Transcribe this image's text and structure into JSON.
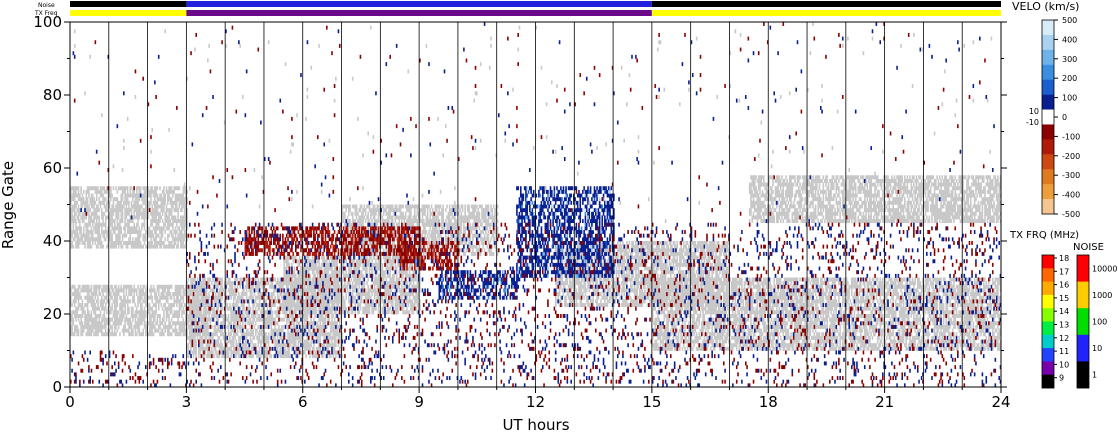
{
  "header": {
    "noise_label": "Noise",
    "txfreq_label": "TX Freq"
  },
  "status_bars": {
    "noise_segments": [
      {
        "from": 0,
        "to": 3,
        "color": "#000000"
      },
      {
        "from": 3,
        "to": 15,
        "color": "#2222dd"
      },
      {
        "from": 15,
        "to": 24,
        "color": "#000000"
      }
    ],
    "freq_segments": [
      {
        "from": 0,
        "to": 3,
        "color": "#ffff00"
      },
      {
        "from": 3,
        "to": 15,
        "color": "#6a0a8a"
      },
      {
        "from": 15,
        "to": 24,
        "color": "#ffff00"
      }
    ]
  },
  "chart_data": {
    "type": "heatmap",
    "title": "",
    "xlabel": "UT hours",
    "ylabel": "Range Gate",
    "xlim": [
      0,
      24
    ],
    "ylim": [
      0,
      100
    ],
    "x_ticks": [
      0,
      3,
      6,
      9,
      12,
      15,
      18,
      21,
      24
    ],
    "y_ticks": [
      0,
      20,
      40,
      60,
      80,
      100
    ],
    "vertical_gridlines_every_hours": 1,
    "ground_scatter_color": "#c8c8c8",
    "scatter_regions": [
      {
        "kind": "ground",
        "x": [
          0,
          3
        ],
        "y": [
          38,
          55
        ]
      },
      {
        "kind": "ground",
        "x": [
          0,
          3.5
        ],
        "y": [
          14,
          28
        ]
      },
      {
        "kind": "ground",
        "x": [
          3,
          7
        ],
        "y": [
          8,
          30
        ]
      },
      {
        "kind": "ground",
        "x": [
          5.5,
          9
        ],
        "y": [
          20,
          36
        ]
      },
      {
        "kind": "ground",
        "x": [
          7,
          11
        ],
        "y": [
          36,
          50
        ]
      },
      {
        "kind": "ground",
        "x": [
          12.5,
          17
        ],
        "y": [
          22,
          40
        ]
      },
      {
        "kind": "ground",
        "x": [
          15,
          24
        ],
        "y": [
          10,
          30
        ]
      },
      {
        "kind": "ground",
        "x": [
          17.5,
          24
        ],
        "y": [
          45,
          58
        ]
      },
      {
        "kind": "positive",
        "x": [
          9.5,
          11.5
        ],
        "y": [
          24,
          32
        ]
      },
      {
        "kind": "positive",
        "x": [
          11.5,
          14
        ],
        "y": [
          30,
          55
        ]
      },
      {
        "kind": "negative",
        "x": [
          8.5,
          10
        ],
        "y": [
          32,
          40
        ]
      },
      {
        "kind": "negative",
        "x": [
          4.5,
          9
        ],
        "y": [
          36,
          44
        ]
      },
      {
        "kind": "mixed",
        "x": [
          0,
          24
        ],
        "y": [
          0,
          10
        ]
      },
      {
        "kind": "mixed",
        "x": [
          3,
          24
        ],
        "y": [
          10,
          45
        ]
      },
      {
        "kind": "sparse",
        "x": [
          0,
          24
        ],
        "y": [
          45,
          100
        ]
      }
    ],
    "velocity_scale": {
      "label": "VELO (km/s)",
      "ticks": [
        500,
        400,
        300,
        200,
        100,
        0,
        -100,
        -200,
        -300,
        -400,
        -500
      ],
      "side_labels": [
        "10",
        "-10"
      ],
      "colors": [
        "#d8ecf8",
        "#a8d2f0",
        "#6eb2ea",
        "#3a8ee0",
        "#1a5ed0",
        "#0a1f8f",
        "#ffffff",
        "#8a0000",
        "#b01a0a",
        "#cc4a12",
        "#e07a1e",
        "#ee9e3a",
        "#f6c690"
      ]
    },
    "txfreq_scale": {
      "label": "TX FRQ (MHz)",
      "ticks": [
        18,
        17,
        16,
        15,
        14,
        13,
        12,
        11,
        10,
        9
      ],
      "colors": [
        "#ff0000",
        "#ff6600",
        "#ffaa00",
        "#ffff00",
        "#88ff00",
        "#00ee44",
        "#00cccc",
        "#2244ff",
        "#7700aa",
        "#000000"
      ]
    },
    "noise_scale": {
      "label": "NOISE",
      "ticks": [
        "10000",
        "1000",
        "100",
        "10",
        "1"
      ],
      "colors": [
        "#ff0000",
        "#ffcc00",
        "#00dd00",
        "#2222ff",
        "#000000"
      ]
    }
  }
}
